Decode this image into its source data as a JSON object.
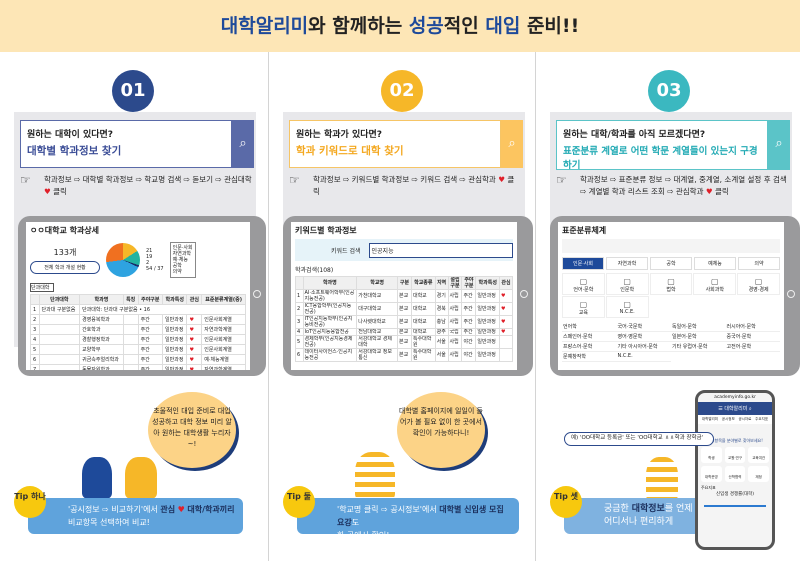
{
  "banner": {
    "p1": "대학알리미",
    "p2": "와 함께하는 ",
    "p3": "성공",
    "p4": "적인 ",
    "p5": "대입",
    "p6": " 준비!!"
  },
  "colors": {
    "step1": "#2c4a8c",
    "step2": "#f6b728",
    "step3": "#3bb8c0",
    "tip": "#5fa3dc",
    "heart": "#e0202a",
    "banner": "#fde6b6"
  },
  "steps": [
    {
      "number": "01",
      "question": "원하는 대학이 있다면?",
      "headline": "대학별 학과정보 찾기",
      "path": "학과정보 ⇨ 대학별 학과정보 ⇨ 학교명 검색 ⇨ 돋보기 ⇨ 관심대학",
      "click": "클릭",
      "screen": {
        "title": "ㅇㅇ대학교 학과상세",
        "count": "133개",
        "button": "전체 학과 개설 현황",
        "pie_labels": [
          "21",
          "19",
          "2",
          "54",
          "37"
        ],
        "legend": [
          "인문·사회",
          "자연과학",
          "예·체능",
          "공학",
          "의약"
        ],
        "filter": "단과대학",
        "headers": [
          "단과대학",
          "학과명",
          "특징",
          "주야구분",
          "학과특성",
          "관심",
          "표준분류계열(중)"
        ],
        "group_row": "단과대학: 단과대 구분없음 • 16",
        "group": "단과대 구분없음",
        "rows": [
          [
            "2",
            "경영융복학과",
            "주간",
            "일반과정",
            "인문사회계열"
          ],
          [
            "3",
            "간호학과",
            "주간",
            "일반과정",
            "자연과학계열"
          ],
          [
            "4",
            "경찰행정학과",
            "주간",
            "일반과정",
            "인문사회계열"
          ],
          [
            "5",
            "교양학부",
            "주간",
            "일반과정",
            "인문사회계열"
          ],
          [
            "6",
            "귀금속주얼리학과",
            "주간",
            "일반과정",
            "예·체능계열"
          ],
          [
            "7",
            "동물자원학과",
            "주간",
            "일반과정",
            "자연과학계열"
          ]
        ]
      },
      "bubble": "초울적인 대입 준비로 대입 성공하고 대학 정보 미리 알아 원하는 대학생활 누리자~!",
      "tip": {
        "badge": "Tip 하나",
        "t1": "'공시정보 ⇨ 비교하기'에서 ",
        "t2": "관심",
        "t3": " 대학/학과끼리",
        "t4": "비교항목 선택하여 비교!"
      }
    },
    {
      "number": "02",
      "question": "원하는 학과가 있다면?",
      "headline": "학과 키워드로 대학 찾기",
      "path": "학과정보 ⇨ 키워드별 학과정보 ⇨ 키워드 검색 ⇨ 관심학과",
      "click": "클릭",
      "screen": {
        "title": "키워드별 학과정보",
        "search_label": "키워드 검색",
        "search_value": "인공지능",
        "result": "학과검색(108)",
        "headers": [
          "학과명",
          "학교명",
          "구분",
          "학교종류",
          "지역",
          "설립구분",
          "주야구분",
          "학과특성",
          "관심"
        ],
        "rows": [
          [
            "1",
            "AI·소프트웨어학부(인공지능전공)",
            "가천대학교",
            "본교",
            "대학교",
            "경기",
            "사립",
            "주간",
            "일반과정"
          ],
          [
            "2",
            "ICT융합학부(인공지능전공)",
            "대구대학교",
            "본교",
            "대학교",
            "경북",
            "사립",
            "주간",
            "일반과정"
          ],
          [
            "3",
            "IT인공지능학부(인공지능비전공)",
            "나사렛대학교",
            "본교",
            "대학교",
            "충남",
            "사립",
            "주간",
            "일반과정"
          ],
          [
            "4",
            "IoT인공지능융합전공",
            "전남대학교",
            "본교",
            "대학교",
            "광주",
            "국립",
            "주간",
            "일반과정"
          ],
          [
            "5",
            "경제학부(인공지능경제전공)",
            "서강대학교 경제대학",
            "본교",
            "특수대학원",
            "서울",
            "사립",
            "야간",
            "일반과정"
          ],
          [
            "6",
            "데이터사이언스·인공지능전공",
            "서강대학교 정보통신",
            "본교",
            "특수대학원",
            "서울",
            "사립",
            "야간",
            "일반과정"
          ]
        ]
      },
      "bubble": "대학별 홈페이지에 일일이 들어가 볼 필요 없이 한 곳에서 확인이 가능하다니!",
      "tip": {
        "badge": "Tip 둘",
        "t1": "'학교명 클릭 ⇨ 공시정보'에서 ",
        "t2": "대학별 신입생 모집요강",
        "t3": "도",
        "t4": "한 곳에서 확인!"
      }
    },
    {
      "number": "03",
      "question": "원하는 대학/학과를 아직 모르겠다면?",
      "headline": "표준분류 계열로 어떤 학문 계열들이 있는지 구경하기",
      "path": "학과정보 ⇨ 표준분류 정보 ⇨ 대계열, 중계열, 소계열 설정 후 검색 ⇨ 계열별 학과 리스트 조회 ⇨ 관심학과",
      "click": "클릭",
      "screen": {
        "title": "표준분류체계",
        "tabs": [
          "인문·사회",
          "자연과학",
          "공학",
          "예체능",
          "의약"
        ],
        "icons": [
          "언어·문학",
          "인문학",
          "법학",
          "사회과학",
          "경영·경제",
          "교육",
          "N.C.E."
        ],
        "list": [
          "언어학",
          "국어·국문학",
          "독일어·문학",
          "러시아어·문학",
          "스페인어·문학",
          "영어·영문학",
          "일본어·문학",
          "중국어·문학",
          "프랑스어·문학",
          "기타 아시아어·문학",
          "기타 유럽어·문학",
          "고전어·문학",
          "문예창작학",
          "N.C.E."
        ]
      },
      "search_bubble": "예) 'OO대학교 등록금' 또는 'OO대학교 ㅿㅿ학과 장학금'",
      "phone": {
        "url": "academyinfo.go.kr",
        "brand": "대학알리미",
        "menu": [
          "대학알리미",
          "공시정보",
          "공시자료",
          "주요지표"
        ],
        "prompt": "공시항목을 분야별로 찾아보세요!",
        "items": [
          "학생",
          "교원·연구",
          "교육여건",
          "대학운영",
          "산학협력",
          "재정"
        ],
        "chart_title": "주요지표",
        "chart_label": "신입생 경쟁률(대학)"
      },
      "tip": {
        "badge": "Tip 셋",
        "t1": "궁금한 ",
        "t2": "대학정보",
        "t3": "를 언제",
        "t4": "어디서나 편리하게"
      }
    }
  ]
}
